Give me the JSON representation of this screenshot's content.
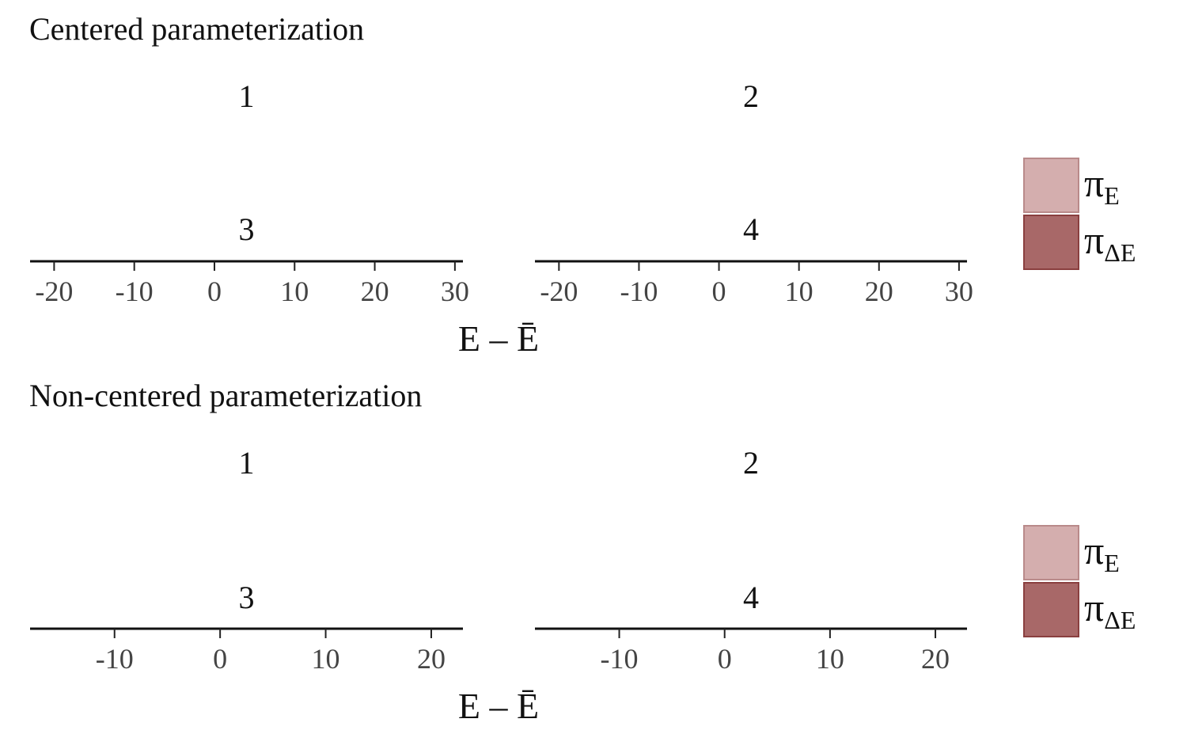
{
  "chart_data": [
    {
      "type": "area",
      "title": "Centered parameterization",
      "xlabel": "E – Ē",
      "x_ticks": [
        -20,
        -10,
        0,
        10,
        20,
        30
      ],
      "xlim": [
        -23,
        31
      ],
      "panels": [
        "1",
        "2",
        "3",
        "4"
      ],
      "series": [
        {
          "name": "πE",
          "label_main": "π",
          "label_sub": "E",
          "fill": "#d4aeae",
          "stroke": "#b98a8a",
          "values": []
        },
        {
          "name": "πΔE",
          "label_main": "π",
          "label_sub": "ΔE",
          "fill": "#a86868",
          "stroke": "#8a3f3f",
          "values": []
        }
      ],
      "grid": false,
      "legend_position": "right"
    },
    {
      "type": "area",
      "title": "Non-centered parameterization",
      "xlabel": "E – Ē",
      "x_ticks": [
        -10,
        0,
        10,
        20
      ],
      "xlim": [
        -18,
        23
      ],
      "panels": [
        "1",
        "2",
        "3",
        "4"
      ],
      "series": [
        {
          "name": "πE",
          "label_main": "π",
          "label_sub": "E",
          "fill": "#d4aeae",
          "stroke": "#b98a8a",
          "values": []
        },
        {
          "name": "πΔE",
          "label_main": "π",
          "label_sub": "ΔE",
          "fill": "#a86868",
          "stroke": "#8a3f3f",
          "values": []
        }
      ],
      "grid": false,
      "legend_position": "right"
    }
  ]
}
